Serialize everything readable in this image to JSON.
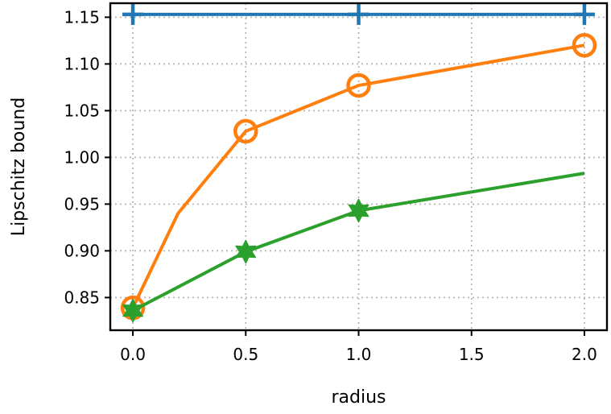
{
  "chart_data": {
    "type": "line",
    "xlabel": "radius",
    "ylabel": "Lipschitz bound",
    "xlim": [
      -0.1,
      2.1
    ],
    "ylim": [
      0.815,
      1.165
    ],
    "xticks": [
      "0.0",
      "0.5",
      "1.0",
      "1.5",
      "2.0"
    ],
    "yticks": [
      "0.85",
      "0.90",
      "0.95",
      "1.00",
      "1.05",
      "1.10",
      "1.15"
    ],
    "grid": true,
    "series": [
      {
        "color": "#1f77b4",
        "marker": "plus",
        "x": [
          0.0,
          1.0,
          2.0
        ],
        "y": [
          1.153,
          1.153,
          1.153
        ],
        "marker_x": [
          0.0,
          1.0,
          2.0
        ]
      },
      {
        "color": "#ff7f0e",
        "marker": "circle-open",
        "x": [
          0.0,
          0.2,
          0.5,
          1.0,
          2.0
        ],
        "y": [
          0.839,
          0.94,
          1.028,
          1.077,
          1.12
        ],
        "marker_x": [
          0.0,
          0.5,
          1.0,
          2.0
        ]
      },
      {
        "color": "#2ca02c",
        "marker": "star",
        "x": [
          0.0,
          0.5,
          1.0,
          2.0
        ],
        "y": [
          0.836,
          0.899,
          0.943,
          0.983
        ],
        "marker_x": [
          0.0,
          0.5,
          1.0
        ]
      }
    ]
  }
}
